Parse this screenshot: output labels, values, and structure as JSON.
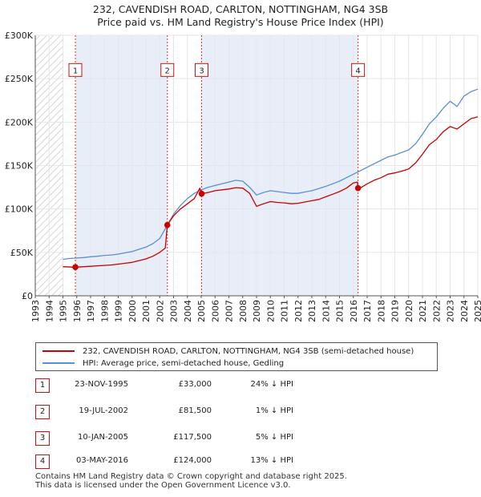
{
  "title_line1": "232, CAVENDISH ROAD, CARLTON, NOTTINGHAM, NG4 3SB",
  "title_line2": "Price paid vs. HM Land Registry's House Price Index (HPI)",
  "colors": {
    "property": "#cc0000",
    "hpi": "#5b8fd4",
    "band": "#e8eef8",
    "marker_border": "#cc1111",
    "vline": "#dd3333"
  },
  "legend": {
    "property_label": "232, CAVENDISH ROAD, CARLTON, NOTTINGHAM, NG4 3SB (semi-detached house)",
    "hpi_label": "HPI: Average price, semi-detached house, Gedling"
  },
  "transactions": [
    {
      "num": "1",
      "date": "23-NOV-1995",
      "price": "£33,000",
      "hpi": "24% ↓ HPI"
    },
    {
      "num": "2",
      "date": "19-JUL-2002",
      "price": "£81,500",
      "hpi": "1% ↓ HPI"
    },
    {
      "num": "3",
      "date": "10-JAN-2005",
      "price": "£117,500",
      "hpi": "5% ↓ HPI"
    },
    {
      "num": "4",
      "date": "03-MAY-2016",
      "price": "£124,000",
      "hpi": "13% ↓ HPI"
    }
  ],
  "footer_line1": "Contains HM Land Registry data © Crown copyright and database right 2025.",
  "footer_line2": "This data is licensed under the Open Government Licence v3.0.",
  "chart_data": {
    "type": "line",
    "xlim": [
      1993,
      2025
    ],
    "ylim": [
      0,
      300000
    ],
    "x_ticks": [
      1993,
      1994,
      1995,
      1996,
      1997,
      1998,
      1999,
      2000,
      2001,
      2002,
      2003,
      2004,
      2005,
      2006,
      2007,
      2008,
      2009,
      2010,
      2011,
      2012,
      2013,
      2014,
      2015,
      2016,
      2017,
      2018,
      2019,
      2020,
      2021,
      2022,
      2023,
      2024,
      2025
    ],
    "y_ticks": [
      0,
      50000,
      100000,
      150000,
      200000,
      250000,
      300000
    ],
    "y_tick_labels": [
      "£0",
      "£50K",
      "£100K",
      "£150K",
      "£200K",
      "£250K",
      "£300K"
    ],
    "hatch_range": [
      1993,
      1995
    ],
    "shaded_bands": [
      [
        1995.9,
        2002.55
      ],
      [
        2005.03,
        2016.34
      ]
    ],
    "sales": [
      {
        "label": "1",
        "x": 1995.9,
        "y": 33000
      },
      {
        "label": "2",
        "x": 2002.55,
        "y": 81500
      },
      {
        "label": "3",
        "x": 2005.03,
        "y": 117500
      },
      {
        "label": "4",
        "x": 2016.34,
        "y": 124000
      }
    ],
    "series": [
      {
        "name": "HPI: Average price, semi-detached house, Gedling",
        "x": [
          1995.0,
          1995.5,
          1996.0,
          1996.5,
          1997.0,
          1997.5,
          1998.0,
          1998.5,
          1999.0,
          1999.5,
          2000.0,
          2000.5,
          2001.0,
          2001.5,
          2002.0,
          2002.5,
          2003.0,
          2003.5,
          2004.0,
          2004.5,
          2005.0,
          2005.5,
          2006.0,
          2006.5,
          2007.0,
          2007.5,
          2008.0,
          2008.5,
          2009.0,
          2009.5,
          2010.0,
          2010.5,
          2011.0,
          2011.5,
          2012.0,
          2012.5,
          2013.0,
          2013.5,
          2014.0,
          2014.5,
          2015.0,
          2015.5,
          2016.0,
          2016.5,
          2017.0,
          2017.5,
          2018.0,
          2018.5,
          2019.0,
          2019.5,
          2020.0,
          2020.5,
          2021.0,
          2021.5,
          2022.0,
          2022.5,
          2023.0,
          2023.5,
          2024.0,
          2024.5,
          2025.0
        ],
        "values": [
          42000,
          43000,
          43500,
          44000,
          45000,
          45500,
          46500,
          47000,
          48000,
          49500,
          51000,
          53500,
          56000,
          60000,
          66000,
          80000,
          94000,
          104000,
          112000,
          118000,
          122000,
          125000,
          127000,
          129000,
          131000,
          133000,
          132000,
          125000,
          116000,
          119000,
          121000,
          120000,
          119000,
          118000,
          118000,
          119500,
          121000,
          123500,
          126000,
          129000,
          132000,
          136000,
          140000,
          144000,
          148000,
          152000,
          156000,
          160000,
          162000,
          165000,
          168000,
          175000,
          186000,
          198000,
          206000,
          216000,
          224000,
          218000,
          230000,
          235000,
          238000
        ]
      },
      {
        "name": "232, CAVENDISH ROAD, CARLTON, NOTTINGHAM, NG4 3SB (semi-detached house)",
        "x": [
          1995.0,
          1995.9,
          1996.5,
          1997.0,
          1997.5,
          1998.0,
          1998.5,
          1999.0,
          1999.5,
          2000.0,
          2000.5,
          2001.0,
          2001.5,
          2002.0,
          2002.4,
          2002.55,
          2003.0,
          2003.5,
          2004.0,
          2004.5,
          2004.9,
          2005.03,
          2005.5,
          2006.0,
          2006.5,
          2007.0,
          2007.5,
          2008.0,
          2008.5,
          2009.0,
          2009.5,
          2010.0,
          2010.5,
          2011.0,
          2011.5,
          2012.0,
          2012.5,
          2013.0,
          2013.5,
          2014.0,
          2014.5,
          2015.0,
          2015.5,
          2016.0,
          2016.3,
          2016.34,
          2016.6,
          2017.0,
          2017.5,
          2018.0,
          2018.5,
          2019.0,
          2019.5,
          2020.0,
          2020.5,
          2021.0,
          2021.5,
          2022.0,
          2022.5,
          2023.0,
          2023.5,
          2024.0,
          2024.5,
          2025.0
        ],
        "values": [
          33500,
          33000,
          33500,
          34000,
          34500,
          35000,
          35500,
          36500,
          37500,
          38500,
          40500,
          42500,
          45500,
          50000,
          55000,
          81500,
          92000,
          100000,
          106000,
          112000,
          124000,
          117500,
          119000,
          121000,
          122000,
          123000,
          124500,
          124000,
          118000,
          103000,
          106000,
          108500,
          107500,
          107000,
          106000,
          106500,
          108000,
          109500,
          111000,
          114000,
          117000,
          120000,
          124000,
          130000,
          131000,
          124000,
          125000,
          129000,
          133000,
          136000,
          140000,
          141500,
          143500,
          146000,
          153000,
          163000,
          174000,
          180000,
          189000,
          195000,
          192000,
          198000,
          204000,
          206000
        ]
      }
    ]
  }
}
